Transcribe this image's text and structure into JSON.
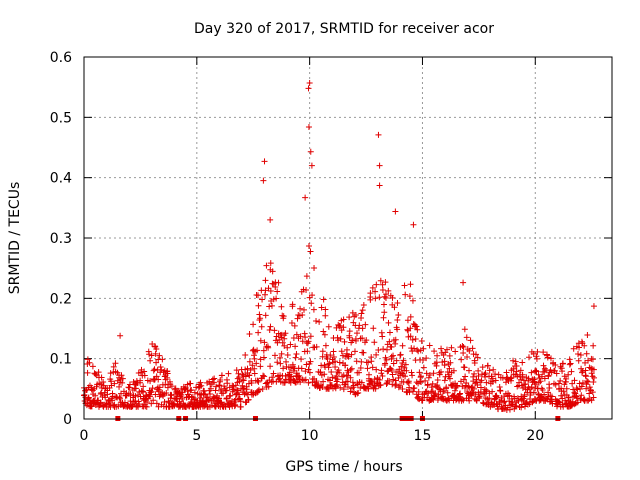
{
  "chart_data": {
    "type": "scatter",
    "title": "Day 320 of 2017, SRMTID for receiver acor",
    "xlabel": "GPS time / hours",
    "ylabel": "SRMTID / TECUs",
    "xlim": [
      0,
      23.4
    ],
    "ylim": [
      0,
      0.6
    ],
    "xticks": [
      0,
      5,
      10,
      15,
      20
    ],
    "yticks": [
      0,
      0.1,
      0.2,
      0.3,
      0.4,
      0.5,
      0.6
    ],
    "grid": true,
    "marker": "+",
    "series_color": "#e00000",
    "x_max_hours": 22.6,
    "zero_markers_x": [
      1.5,
      4.2,
      4.5,
      7.6,
      14.1,
      14.2,
      14.3,
      14.4,
      14.5,
      15.0,
      21.0
    ],
    "notable_points": [
      {
        "x": 10.0,
        "y": 0.557
      },
      {
        "x": 9.95,
        "y": 0.548
      },
      {
        "x": 9.97,
        "y": 0.484
      },
      {
        "x": 13.05,
        "y": 0.471
      },
      {
        "x": 10.05,
        "y": 0.443
      },
      {
        "x": 8.0,
        "y": 0.427
      },
      {
        "x": 10.1,
        "y": 0.42
      },
      {
        "x": 13.1,
        "y": 0.42
      },
      {
        "x": 7.95,
        "y": 0.395
      },
      {
        "x": 13.1,
        "y": 0.387
      },
      {
        "x": 9.8,
        "y": 0.367
      },
      {
        "x": 13.8,
        "y": 0.344
      },
      {
        "x": 8.25,
        "y": 0.33
      },
      {
        "x": 14.6,
        "y": 0.322
      },
      {
        "x": 16.8,
        "y": 0.226
      },
      {
        "x": 22.6,
        "y": 0.187
      },
      {
        "x": 1.6,
        "y": 0.138
      }
    ],
    "envelope": [
      [
        0.0,
        0.02,
        0.13
      ],
      [
        0.3,
        0.02,
        0.1
      ],
      [
        0.6,
        0.02,
        0.08
      ],
      [
        1.0,
        0.02,
        0.07
      ],
      [
        1.5,
        0.02,
        0.1
      ],
      [
        2.0,
        0.02,
        0.06
      ],
      [
        2.5,
        0.02,
        0.08
      ],
      [
        3.0,
        0.02,
        0.13
      ],
      [
        3.5,
        0.02,
        0.1
      ],
      [
        4.0,
        0.02,
        0.05
      ],
      [
        4.5,
        0.02,
        0.06
      ],
      [
        5.0,
        0.02,
        0.06
      ],
      [
        5.5,
        0.02,
        0.07
      ],
      [
        6.0,
        0.02,
        0.07
      ],
      [
        6.5,
        0.02,
        0.08
      ],
      [
        7.0,
        0.02,
        0.09
      ],
      [
        7.5,
        0.04,
        0.17
      ],
      [
        8.0,
        0.05,
        0.3
      ],
      [
        8.5,
        0.06,
        0.25
      ],
      [
        9.0,
        0.06,
        0.2
      ],
      [
        9.5,
        0.06,
        0.18
      ],
      [
        10.0,
        0.06,
        0.3
      ],
      [
        10.5,
        0.05,
        0.21
      ],
      [
        11.0,
        0.05,
        0.17
      ],
      [
        11.5,
        0.05,
        0.17
      ],
      [
        12.0,
        0.04,
        0.18
      ],
      [
        12.5,
        0.05,
        0.2
      ],
      [
        13.0,
        0.05,
        0.25
      ],
      [
        13.5,
        0.06,
        0.22
      ],
      [
        14.0,
        0.05,
        0.2
      ],
      [
        14.5,
        0.04,
        0.26
      ],
      [
        15.0,
        0.03,
        0.12
      ],
      [
        15.5,
        0.03,
        0.14
      ],
      [
        16.0,
        0.03,
        0.12
      ],
      [
        16.5,
        0.03,
        0.12
      ],
      [
        17.0,
        0.03,
        0.17
      ],
      [
        17.5,
        0.03,
        0.1
      ],
      [
        18.0,
        0.02,
        0.09
      ],
      [
        18.5,
        0.015,
        0.07
      ],
      [
        19.0,
        0.015,
        0.1
      ],
      [
        19.5,
        0.02,
        0.1
      ],
      [
        20.0,
        0.03,
        0.12
      ],
      [
        20.5,
        0.03,
        0.11
      ],
      [
        21.0,
        0.02,
        0.09
      ],
      [
        21.5,
        0.02,
        0.1
      ],
      [
        22.0,
        0.03,
        0.15
      ],
      [
        22.6,
        0.03,
        0.13
      ]
    ]
  }
}
